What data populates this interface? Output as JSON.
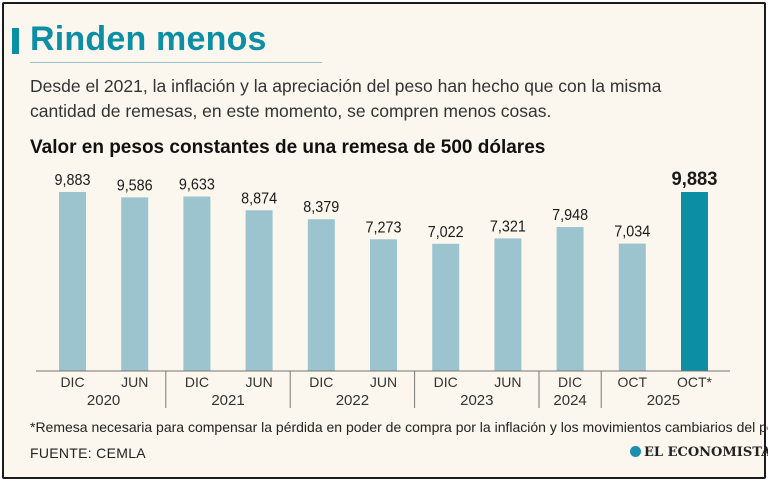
{
  "header": {
    "title": "Rinden menos",
    "subtitle": "Desde el 2021, la inflación y la apreciación del peso han hecho que con la misma cantidad de remesas, en este momento, se compren menos cosas."
  },
  "footer": {
    "footnote": "*Remesa necesaria para compensar la pérdida en poder de compra por la inflación y los movimientos cambiarios del peso",
    "source": "FUENTE: CEMLA",
    "logo": "EL ECONOMISTA"
  },
  "colors": {
    "bar": "#9cc4cf",
    "highlight": "#0c8fa5",
    "accent": "#0c8fa5"
  },
  "chart_data": {
    "type": "bar",
    "title": "Valor en pesos constantes de una remesa de 500 dólares",
    "categories": [
      "DIC",
      "JUN",
      "DIC",
      "JUN",
      "DIC",
      "JUN",
      "DIC",
      "JUN",
      "DIC",
      "OCT",
      "OCT*"
    ],
    "values": [
      9883,
      9586,
      9633,
      8874,
      8379,
      7273,
      7022,
      7321,
      7948,
      7034,
      9883
    ],
    "value_labels": [
      "9,883",
      "9,586",
      "9,633",
      "8,874",
      "8,379",
      "7,273",
      "7,022",
      "7,321",
      "7,948",
      "7,034",
      "9,883"
    ],
    "highlight_index": 10,
    "year_groups": [
      {
        "label": "2020",
        "start": 0,
        "end": 1
      },
      {
        "label": "2021",
        "start": 2,
        "end": 3
      },
      {
        "label": "2022",
        "start": 4,
        "end": 5
      },
      {
        "label": "2023",
        "start": 6,
        "end": 7
      },
      {
        "label": "2024",
        "start": 8,
        "end": 8
      },
      {
        "label": "2025",
        "start": 9,
        "end": 10
      }
    ],
    "xlabel": "",
    "ylabel": "",
    "ylim": [
      0,
      9883
    ]
  }
}
